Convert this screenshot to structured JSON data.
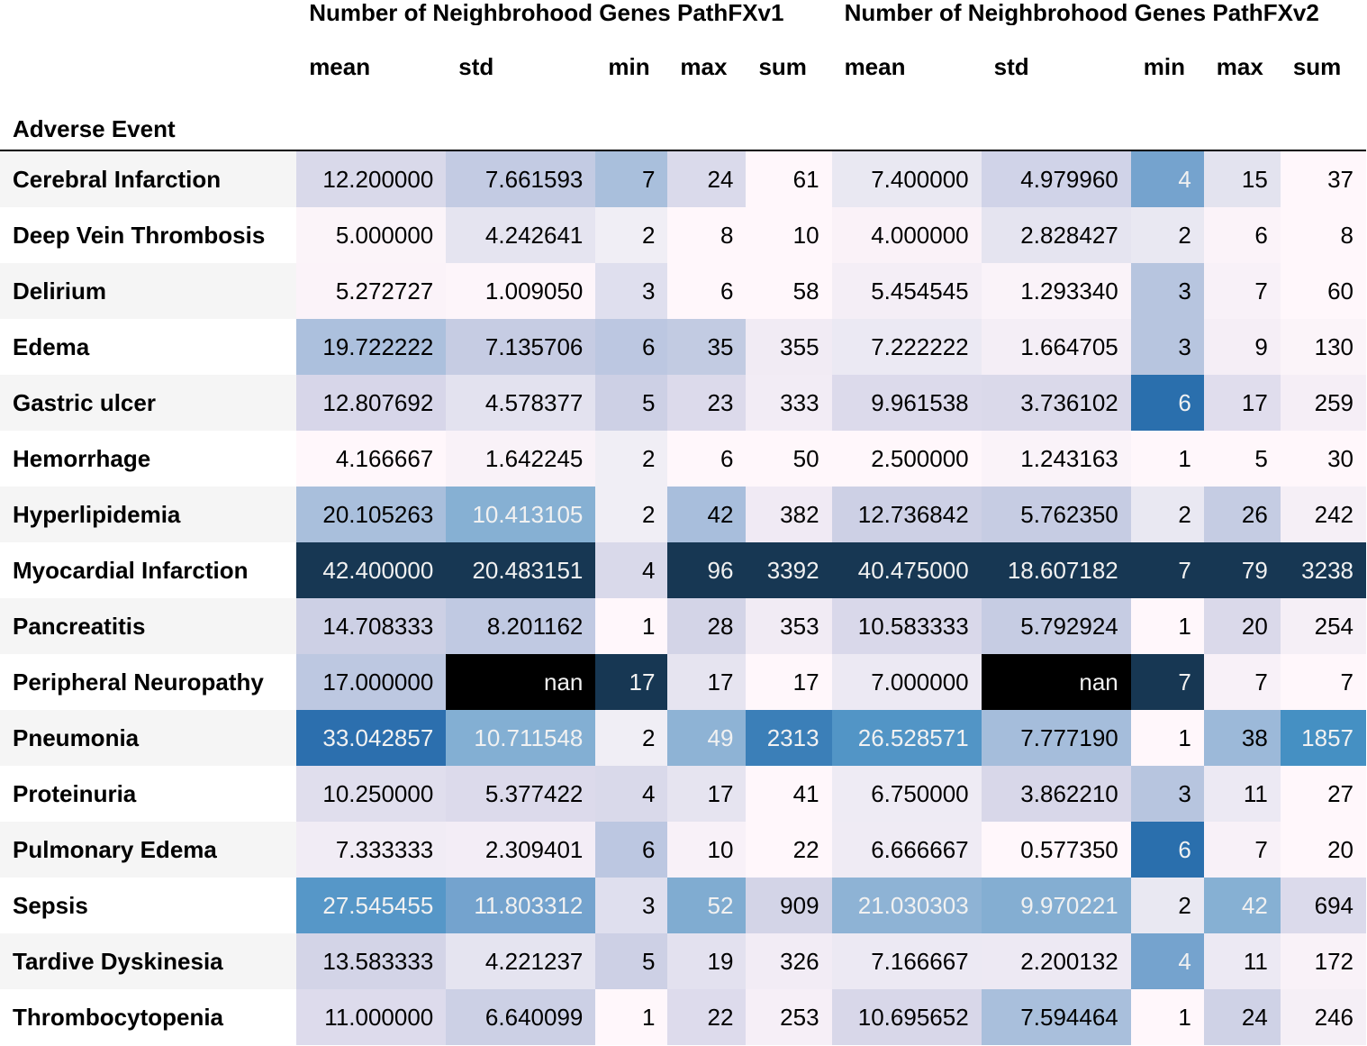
{
  "table": {
    "index_name": "Adverse Event",
    "group_headers": [
      "Number of Neighbrohood Genes PathFXv1",
      "Number of Neighbrohood Genes PathFXv2"
    ],
    "stat_headers": [
      "mean",
      "std",
      "min",
      "max",
      "sum",
      "mean",
      "std",
      "min",
      "max",
      "sum"
    ],
    "rows": [
      {
        "label": "Cerebral Infarction",
        "cells": [
          {
            "v": "12.200000",
            "bg": "#d9d9ea",
            "fg": "#000"
          },
          {
            "v": "7.661593",
            "bg": "#c3cbe3",
            "fg": "#000"
          },
          {
            "v": "7",
            "bg": "#a9bfdc",
            "fg": "#000"
          },
          {
            "v": "24",
            "bg": "#dadaeb",
            "fg": "#000"
          },
          {
            "v": "61",
            "bg": "#fff7fb",
            "fg": "#000"
          },
          {
            "v": "7.400000",
            "bg": "#e9e8f2",
            "fg": "#000"
          },
          {
            "v": "4.979960",
            "bg": "#d0d3e8",
            "fg": "#000"
          },
          {
            "v": "4",
            "bg": "#75a3ce",
            "fg": "#f1f1f1"
          },
          {
            "v": "15",
            "bg": "#e3e3ef",
            "fg": "#000"
          },
          {
            "v": "37",
            "bg": "#fff7fb",
            "fg": "#000"
          }
        ]
      },
      {
        "label": "Deep Vein Thrombosis",
        "cells": [
          {
            "v": "5.000000",
            "bg": "#fbf4f9",
            "fg": "#000"
          },
          {
            "v": "4.242641",
            "bg": "#e5e4f0",
            "fg": "#000"
          },
          {
            "v": "2",
            "bg": "#f0eef5",
            "fg": "#000"
          },
          {
            "v": "8",
            "bg": "#fff7fb",
            "fg": "#000"
          },
          {
            "v": "10",
            "bg": "#fff7fb",
            "fg": "#000"
          },
          {
            "v": "4.000000",
            "bg": "#faf2f8",
            "fg": "#000"
          },
          {
            "v": "2.828427",
            "bg": "#e5e4f0",
            "fg": "#000"
          },
          {
            "v": "2",
            "bg": "#e9e8f2",
            "fg": "#000"
          },
          {
            "v": "6",
            "bg": "#fbf3f9",
            "fg": "#000"
          },
          {
            "v": "8",
            "bg": "#fff7fb",
            "fg": "#000"
          }
        ]
      },
      {
        "label": "Delirium",
        "cells": [
          {
            "v": "5.272727",
            "bg": "#fbf3f9",
            "fg": "#000"
          },
          {
            "v": "1.009050",
            "bg": "#fdf5fa",
            "fg": "#000"
          },
          {
            "v": "3",
            "bg": "#dfdfee",
            "fg": "#000"
          },
          {
            "v": "6",
            "bg": "#fff7fb",
            "fg": "#000"
          },
          {
            "v": "58",
            "bg": "#fff7fb",
            "fg": "#000"
          },
          {
            "v": "5.454545",
            "bg": "#f4eef6",
            "fg": "#000"
          },
          {
            "v": "1.293340",
            "bg": "#faf3f9",
            "fg": "#000"
          },
          {
            "v": "3",
            "bg": "#b7c5df",
            "fg": "#000"
          },
          {
            "v": "7",
            "bg": "#f8f1f8",
            "fg": "#000"
          },
          {
            "v": "60",
            "bg": "#fff7fb",
            "fg": "#000"
          }
        ]
      },
      {
        "label": "Edema",
        "cells": [
          {
            "v": "19.722222",
            "bg": "#acc0dd",
            "fg": "#000"
          },
          {
            "v": "7.135706",
            "bg": "#c6cce3",
            "fg": "#000"
          },
          {
            "v": "6",
            "bg": "#bcc7e1",
            "fg": "#000"
          },
          {
            "v": "35",
            "bg": "#c2cbe2",
            "fg": "#000"
          },
          {
            "v": "355",
            "bg": "#f1ebf4",
            "fg": "#000"
          },
          {
            "v": "7.222222",
            "bg": "#ebe9f3",
            "fg": "#000"
          },
          {
            "v": "1.664705",
            "bg": "#f4eef6",
            "fg": "#000"
          },
          {
            "v": "3",
            "bg": "#b7c5df",
            "fg": "#000"
          },
          {
            "v": "9",
            "bg": "#f5eef6",
            "fg": "#000"
          },
          {
            "v": "130",
            "bg": "#fbf4f9",
            "fg": "#000"
          }
        ]
      },
      {
        "label": "Gastric ulcer",
        "cells": [
          {
            "v": "12.807692",
            "bg": "#d7d6e9",
            "fg": "#000"
          },
          {
            "v": "4.578377",
            "bg": "#e3e2ef",
            "fg": "#000"
          },
          {
            "v": "5",
            "bg": "#cdd0e5",
            "fg": "#000"
          },
          {
            "v": "23",
            "bg": "#dcdaeb",
            "fg": "#000"
          },
          {
            "v": "333",
            "bg": "#f2ecf5",
            "fg": "#000"
          },
          {
            "v": "9.961538",
            "bg": "#dcdaeb",
            "fg": "#000"
          },
          {
            "v": "3.736102",
            "bg": "#dad9ea",
            "fg": "#000"
          },
          {
            "v": "6",
            "bg": "#2a6fad",
            "fg": "#f1f1f1"
          },
          {
            "v": "17",
            "bg": "#e0dded",
            "fg": "#000"
          },
          {
            "v": "259",
            "bg": "#f5eef6",
            "fg": "#000"
          }
        ]
      },
      {
        "label": "Hemorrhage",
        "cells": [
          {
            "v": "4.166667",
            "bg": "#fff7fb",
            "fg": "#000"
          },
          {
            "v": "1.642245",
            "bg": "#f9f2f8",
            "fg": "#000"
          },
          {
            "v": "2",
            "bg": "#f0eef5",
            "fg": "#000"
          },
          {
            "v": "6",
            "bg": "#fff7fb",
            "fg": "#000"
          },
          {
            "v": "50",
            "bg": "#fff7fb",
            "fg": "#000"
          },
          {
            "v": "2.500000",
            "bg": "#fff7fb",
            "fg": "#000"
          },
          {
            "v": "1.243163",
            "bg": "#faf3f9",
            "fg": "#000"
          },
          {
            "v": "1",
            "bg": "#fff7fb",
            "fg": "#000"
          },
          {
            "v": "5",
            "bg": "#fff7fb",
            "fg": "#000"
          },
          {
            "v": "30",
            "bg": "#fff7fb",
            "fg": "#000"
          }
        ]
      },
      {
        "label": "Hyperlipidemia",
        "cells": [
          {
            "v": "20.105263",
            "bg": "#a9bfdc",
            "fg": "#000"
          },
          {
            "v": "10.413105",
            "bg": "#86b0d3",
            "fg": "#f1f1f1"
          },
          {
            "v": "2",
            "bg": "#f0eef5",
            "fg": "#000"
          },
          {
            "v": "42",
            "bg": "#a8bedc",
            "fg": "#000"
          },
          {
            "v": "382",
            "bg": "#f0eaf4",
            "fg": "#000"
          },
          {
            "v": "12.736842",
            "bg": "#cdd0e5",
            "fg": "#000"
          },
          {
            "v": "5.762350",
            "bg": "#c6cce3",
            "fg": "#000"
          },
          {
            "v": "2",
            "bg": "#e9e8f2",
            "fg": "#000"
          },
          {
            "v": "26",
            "bg": "#c5cce3",
            "fg": "#000"
          },
          {
            "v": "242",
            "bg": "#f5eff6",
            "fg": "#000"
          }
        ]
      },
      {
        "label": "Myocardial Infarction",
        "cells": [
          {
            "v": "42.400000",
            "bg": "#173753",
            "fg": "#f1f1f1"
          },
          {
            "v": "20.483151",
            "bg": "#173753",
            "fg": "#f1f1f1"
          },
          {
            "v": "4",
            "bg": "#d9d9ea",
            "fg": "#000"
          },
          {
            "v": "96",
            "bg": "#173753",
            "fg": "#f1f1f1"
          },
          {
            "v": "3392",
            "bg": "#173753",
            "fg": "#f1f1f1"
          },
          {
            "v": "40.475000",
            "bg": "#173753",
            "fg": "#f1f1f1"
          },
          {
            "v": "18.607182",
            "bg": "#173753",
            "fg": "#f1f1f1"
          },
          {
            "v": "7",
            "bg": "#173753",
            "fg": "#f1f1f1"
          },
          {
            "v": "79",
            "bg": "#173753",
            "fg": "#f1f1f1"
          },
          {
            "v": "3238",
            "bg": "#173753",
            "fg": "#f1f1f1"
          }
        ]
      },
      {
        "label": "Pancreatitis",
        "cells": [
          {
            "v": "14.708333",
            "bg": "#cdd0e5",
            "fg": "#000"
          },
          {
            "v": "8.201162",
            "bg": "#c0c9e2",
            "fg": "#000"
          },
          {
            "v": "1",
            "bg": "#fff7fb",
            "fg": "#000"
          },
          {
            "v": "28",
            "bg": "#d3d4e7",
            "fg": "#000"
          },
          {
            "v": "353",
            "bg": "#f1ebf4",
            "fg": "#000"
          },
          {
            "v": "10.583333",
            "bg": "#d9d8ea",
            "fg": "#000"
          },
          {
            "v": "5.792924",
            "bg": "#c6cce3",
            "fg": "#000"
          },
          {
            "v": "1",
            "bg": "#fff7fb",
            "fg": "#000"
          },
          {
            "v": "20",
            "bg": "#dad9ea",
            "fg": "#000"
          },
          {
            "v": "254",
            "bg": "#f5eff6",
            "fg": "#000"
          }
        ]
      },
      {
        "label": "Peripheral Neuropathy",
        "cells": [
          {
            "v": "17.000000",
            "bg": "#bdc8e1",
            "fg": "#000"
          },
          {
            "v": "nan",
            "bg": "#000000",
            "fg": "#f1f1f1"
          },
          {
            "v": "17",
            "bg": "#173753",
            "fg": "#f1f1f1"
          },
          {
            "v": "17",
            "bg": "#e6e4f0",
            "fg": "#000"
          },
          {
            "v": "17",
            "bg": "#fff7fb",
            "fg": "#000"
          },
          {
            "v": "7.000000",
            "bg": "#ece9f3",
            "fg": "#000"
          },
          {
            "v": "nan",
            "bg": "#000000",
            "fg": "#f1f1f1"
          },
          {
            "v": "7",
            "bg": "#173753",
            "fg": "#f1f1f1"
          },
          {
            "v": "7",
            "bg": "#f8f1f8",
            "fg": "#000"
          },
          {
            "v": "7",
            "bg": "#fff7fb",
            "fg": "#000"
          }
        ]
      },
      {
        "label": "Pneumonia",
        "cells": [
          {
            "v": "33.042857",
            "bg": "#2c6fae",
            "fg": "#f1f1f1"
          },
          {
            "v": "10.711548",
            "bg": "#83afd3",
            "fg": "#f1f1f1"
          },
          {
            "v": "2",
            "bg": "#f0eef5",
            "fg": "#000"
          },
          {
            "v": "49",
            "bg": "#8eb3d5",
            "fg": "#f1f1f1"
          },
          {
            "v": "2313",
            "bg": "#3b7fb8",
            "fg": "#f1f1f1"
          },
          {
            "v": "26.528571",
            "bg": "#5295c6",
            "fg": "#f1f1f1"
          },
          {
            "v": "7.777190",
            "bg": "#a5bddb",
            "fg": "#000"
          },
          {
            "v": "1",
            "bg": "#fff7fb",
            "fg": "#000"
          },
          {
            "v": "38",
            "bg": "#9cb9d9",
            "fg": "#000"
          },
          {
            "v": "1857",
            "bg": "#4590c3",
            "fg": "#f1f1f1"
          }
        ]
      },
      {
        "label": "Proteinuria",
        "cells": [
          {
            "v": "10.250000",
            "bg": "#e0deed",
            "fg": "#000"
          },
          {
            "v": "5.377422",
            "bg": "#dcdaeb",
            "fg": "#000"
          },
          {
            "v": "4",
            "bg": "#d9d9ea",
            "fg": "#000"
          },
          {
            "v": "17",
            "bg": "#e6e4f0",
            "fg": "#000"
          },
          {
            "v": "41",
            "bg": "#fff7fb",
            "fg": "#000"
          },
          {
            "v": "6.750000",
            "bg": "#eeebf4",
            "fg": "#000"
          },
          {
            "v": "3.862210",
            "bg": "#d8d7e9",
            "fg": "#000"
          },
          {
            "v": "3",
            "bg": "#b7c5df",
            "fg": "#000"
          },
          {
            "v": "11",
            "bg": "#ece9f3",
            "fg": "#000"
          },
          {
            "v": "27",
            "bg": "#fff7fb",
            "fg": "#000"
          }
        ]
      },
      {
        "label": "Pulmonary Edema",
        "cells": [
          {
            "v": "7.333333",
            "bg": "#f1ecf5",
            "fg": "#000"
          },
          {
            "v": "2.309401",
            "bg": "#f3edf6",
            "fg": "#000"
          },
          {
            "v": "6",
            "bg": "#bcc7e1",
            "fg": "#000"
          },
          {
            "v": "10",
            "bg": "#f8f1f8",
            "fg": "#000"
          },
          {
            "v": "22",
            "bg": "#fff7fb",
            "fg": "#000"
          },
          {
            "v": "6.666667",
            "bg": "#efebf4",
            "fg": "#000"
          },
          {
            "v": "0.577350",
            "bg": "#fff7fb",
            "fg": "#000"
          },
          {
            "v": "6",
            "bg": "#2a6fad",
            "fg": "#f1f1f1"
          },
          {
            "v": "7",
            "bg": "#f8f1f8",
            "fg": "#000"
          },
          {
            "v": "20",
            "bg": "#fff7fb",
            "fg": "#000"
          }
        ]
      },
      {
        "label": "Sepsis",
        "cells": [
          {
            "v": "27.545455",
            "bg": "#5697c8",
            "fg": "#f1f1f1"
          },
          {
            "v": "11.803312",
            "bg": "#74a3ce",
            "fg": "#f1f1f1"
          },
          {
            "v": "3",
            "bg": "#dfdfee",
            "fg": "#000"
          },
          {
            "v": "52",
            "bg": "#80acd1",
            "fg": "#f1f1f1"
          },
          {
            "v": "909",
            "bg": "#d3d4e7",
            "fg": "#000"
          },
          {
            "v": "21.030303",
            "bg": "#8eb3d5",
            "fg": "#f1f1f1"
          },
          {
            "v": "9.970221",
            "bg": "#84aed2",
            "fg": "#f1f1f1"
          },
          {
            "v": "2",
            "bg": "#e9e8f2",
            "fg": "#000"
          },
          {
            "v": "42",
            "bg": "#86b0d3",
            "fg": "#f1f1f1"
          },
          {
            "v": "694",
            "bg": "#dbdaeb",
            "fg": "#000"
          }
        ]
      },
      {
        "label": "Tardive Dyskinesia",
        "cells": [
          {
            "v": "13.583333",
            "bg": "#d3d4e7",
            "fg": "#000"
          },
          {
            "v": "4.221237",
            "bg": "#e5e4f0",
            "fg": "#000"
          },
          {
            "v": "5",
            "bg": "#cdd0e5",
            "fg": "#000"
          },
          {
            "v": "19",
            "bg": "#e3e1ef",
            "fg": "#000"
          },
          {
            "v": "326",
            "bg": "#f2ecf5",
            "fg": "#000"
          },
          {
            "v": "7.166667",
            "bg": "#ece9f3",
            "fg": "#000"
          },
          {
            "v": "2.200132",
            "bg": "#ede9f3",
            "fg": "#000"
          },
          {
            "v": "4",
            "bg": "#75a3ce",
            "fg": "#f1f1f1"
          },
          {
            "v": "11",
            "bg": "#ece9f3",
            "fg": "#000"
          },
          {
            "v": "172",
            "bg": "#f9f2f8",
            "fg": "#000"
          }
        ]
      },
      {
        "label": "Thrombocytopenia",
        "cells": [
          {
            "v": "11.000000",
            "bg": "#dddbec",
            "fg": "#000"
          },
          {
            "v": "6.640099",
            "bg": "#ccd0e5",
            "fg": "#000"
          },
          {
            "v": "1",
            "bg": "#fff7fb",
            "fg": "#000"
          },
          {
            "v": "22",
            "bg": "#dddbec",
            "fg": "#000"
          },
          {
            "v": "253",
            "bg": "#f6eff7",
            "fg": "#000"
          },
          {
            "v": "10.695652",
            "bg": "#d8d7e9",
            "fg": "#000"
          },
          {
            "v": "7.594464",
            "bg": "#a9bfdc",
            "fg": "#000"
          },
          {
            "v": "1",
            "bg": "#fff7fb",
            "fg": "#000"
          },
          {
            "v": "24",
            "bg": "#cfd2e6",
            "fg": "#000"
          },
          {
            "v": "246",
            "bg": "#f5eff6",
            "fg": "#000"
          }
        ]
      }
    ]
  }
}
